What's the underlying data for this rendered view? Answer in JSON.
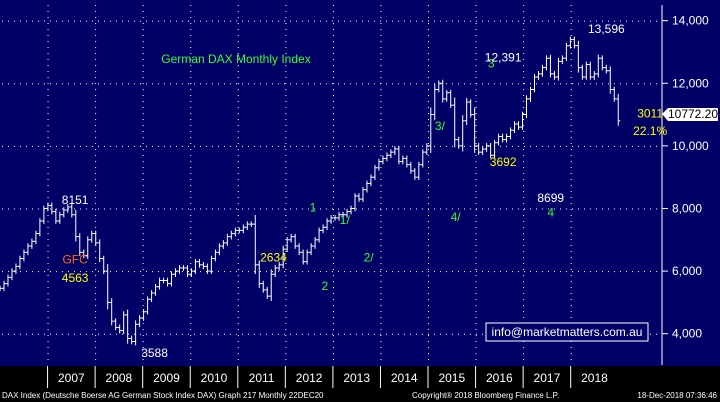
{
  "chart_data": {
    "type": "ohlc",
    "title": "German DAX Monthly Index",
    "x_labels": [
      "2007",
      "2008",
      "2009",
      "2010",
      "2011",
      "2012",
      "2013",
      "2014",
      "2015",
      "2016",
      "2017",
      "2018"
    ],
    "y_ticks": [
      4000,
      6000,
      8000,
      10000,
      12000,
      14000
    ],
    "ylim": [
      3000,
      14500
    ],
    "last_value": "10772.20",
    "series": [
      {
        "values": [
          5450,
          5600,
          5800,
          6000,
          6150,
          6400,
          6600,
          6800,
          6950,
          7200,
          7600,
          8000,
          8100,
          7900,
          7600,
          7800,
          7950,
          8050,
          7800,
          7100,
          6600,
          6500,
          7000,
          7200,
          6900,
          6400,
          6000,
          5000,
          4400,
          4200,
          4100,
          4600,
          3850,
          3750,
          4300,
          4500,
          4700,
          5100,
          5300,
          5500,
          5700,
          5700,
          5600,
          5900,
          6000,
          6100,
          6100,
          5900,
          6000,
          6300,
          6200,
          6150,
          6000,
          6400,
          6600,
          6800,
          6900,
          7100,
          7200,
          7300,
          7300,
          7400,
          7500,
          7500,
          6200,
          5600,
          5400,
          5200,
          5900,
          6100,
          6200,
          6700,
          7000,
          7100,
          6800,
          6600,
          6300,
          6600,
          6800,
          7000,
          7300,
          7400,
          7600,
          7700,
          7700,
          7800,
          7800,
          7900,
          8000,
          8400,
          8300,
          8600,
          8800,
          9000,
          9300,
          9500,
          9600,
          9700,
          9800,
          9900,
          9500,
          9600,
          9400,
          9200,
          9000,
          9400,
          9800,
          10000,
          11000,
          11800,
          12000,
          11500,
          11700,
          11300,
          10200,
          10000,
          10800,
          11400,
          11000,
          10000,
          9800,
          9900,
          10000,
          9700,
          10100,
          10300,
          10200,
          10300,
          10500,
          10700,
          10600,
          11000,
          11500,
          11800,
          12200,
          12300,
          12500,
          12800,
          12300,
          12200,
          12700,
          12800,
          13200,
          13400,
          13200,
          12500,
          12200,
          12600,
          12200,
          12300,
          12800,
          12500,
          12400,
          11800,
          11500,
          10800
        ]
      }
    ],
    "annotations": [
      {
        "text": "8151",
        "x": 2007.58,
        "y": 8151,
        "color": "#ffffff"
      },
      {
        "text": "GFC",
        "x": 2007.58,
        "y": 6250,
        "color": "#ff6600"
      },
      {
        "text": "4563",
        "x": 2007.58,
        "y": 5650,
        "color": "#ffff00"
      },
      {
        "text": "3588",
        "x": 2009.25,
        "y": 3250,
        "color": "#ffffff"
      },
      {
        "text": "2634",
        "x": 2011.75,
        "y": 6300,
        "color": "#ffff00"
      },
      {
        "text": "1",
        "x": 2012.58,
        "y": 7900,
        "color": "#33ff33"
      },
      {
        "text": "2",
        "x": 2012.83,
        "y": 5400,
        "color": "#33ff33"
      },
      {
        "text": "1/",
        "x": 2013.25,
        "y": 7500,
        "color": "#33ff33"
      },
      {
        "text": "2/",
        "x": 2013.75,
        "y": 6300,
        "color": "#33ff33"
      },
      {
        "text": "3/",
        "x": 2015.25,
        "y": 10500,
        "color": "#33ff33"
      },
      {
        "text": "4/",
        "x": 2015.58,
        "y": 7600,
        "color": "#33ff33"
      },
      {
        "text": "3",
        "x": 2016.33,
        "y": 12500,
        "color": "#33ff33"
      },
      {
        "text": "12,391",
        "x": 2016.58,
        "y": 12700,
        "color": "#ffffff"
      },
      {
        "text": "3692",
        "x": 2016.58,
        "y": 9350,
        "color": "#ffff00"
      },
      {
        "text": "8699",
        "x": 2017.58,
        "y": 8200,
        "color": "#ffffff"
      },
      {
        "text": "4",
        "x": 2017.58,
        "y": 7750,
        "color": "#33ff33"
      },
      {
        "text": "13,596",
        "x": 2018.75,
        "y": 13600,
        "color": "#ffffff"
      },
      {
        "text": "3011",
        "x": 2019.67,
        "y": 10900,
        "color": "#ffff00"
      },
      {
        "text": "22.1%",
        "x": 2019.67,
        "y": 10350,
        "color": "#ffff00"
      }
    ],
    "footer_left": "DAX Index (Deutsche Boerse AG German Stock Index DAX) Graph 217  Monthly 22DEC20",
    "footer_center": "Copyright® 2018 Bloomberg Finance L.P.",
    "footer_right": "18-Dec-2018 07:36:46",
    "watermark": "info@marketmatters.com.au",
    "colors": {
      "background": "#000066",
      "bars": "#ffffff",
      "grid_dots": "#ffffff",
      "axis_text": "#ffffff",
      "bottom_panel": "#000000"
    }
  }
}
